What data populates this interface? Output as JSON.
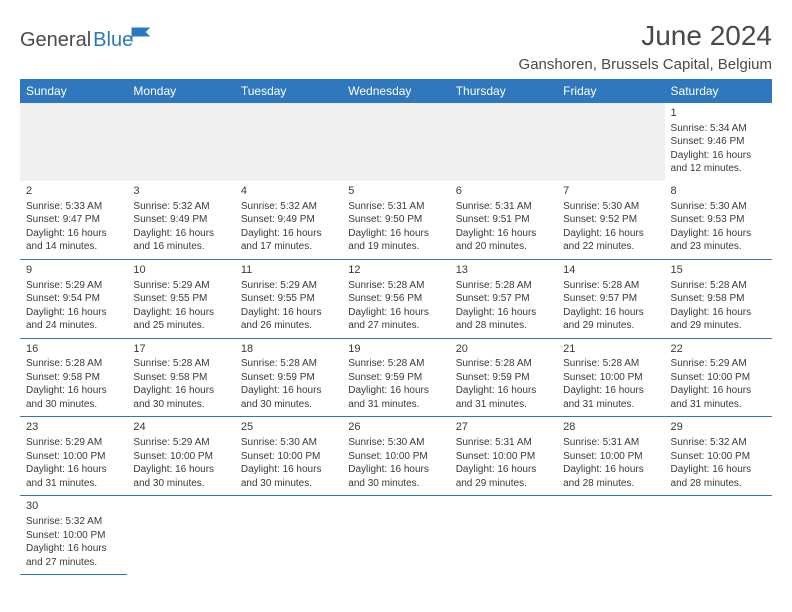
{
  "logo": {
    "part1": "General",
    "part2": "Blue"
  },
  "title": "June 2024",
  "location": "Ganshoren, Brussels Capital, Belgium",
  "colors": {
    "header_bg": "#2f78bd",
    "header_fg": "#ffffff",
    "text": "#3a3a3a",
    "divider": "#2f78bd",
    "blank_bg": "#efefef"
  },
  "weekdays": [
    "Sunday",
    "Monday",
    "Tuesday",
    "Wednesday",
    "Thursday",
    "Friday",
    "Saturday"
  ],
  "weeks": [
    [
      null,
      null,
      null,
      null,
      null,
      null,
      {
        "n": "1",
        "sr": "Sunrise: 5:34 AM",
        "ss": "Sunset: 9:46 PM",
        "d1": "Daylight: 16 hours",
        "d2": "and 12 minutes."
      }
    ],
    [
      {
        "n": "2",
        "sr": "Sunrise: 5:33 AM",
        "ss": "Sunset: 9:47 PM",
        "d1": "Daylight: 16 hours",
        "d2": "and 14 minutes."
      },
      {
        "n": "3",
        "sr": "Sunrise: 5:32 AM",
        "ss": "Sunset: 9:49 PM",
        "d1": "Daylight: 16 hours",
        "d2": "and 16 minutes."
      },
      {
        "n": "4",
        "sr": "Sunrise: 5:32 AM",
        "ss": "Sunset: 9:49 PM",
        "d1": "Daylight: 16 hours",
        "d2": "and 17 minutes."
      },
      {
        "n": "5",
        "sr": "Sunrise: 5:31 AM",
        "ss": "Sunset: 9:50 PM",
        "d1": "Daylight: 16 hours",
        "d2": "and 19 minutes."
      },
      {
        "n": "6",
        "sr": "Sunrise: 5:31 AM",
        "ss": "Sunset: 9:51 PM",
        "d1": "Daylight: 16 hours",
        "d2": "and 20 minutes."
      },
      {
        "n": "7",
        "sr": "Sunrise: 5:30 AM",
        "ss": "Sunset: 9:52 PM",
        "d1": "Daylight: 16 hours",
        "d2": "and 22 minutes."
      },
      {
        "n": "8",
        "sr": "Sunrise: 5:30 AM",
        "ss": "Sunset: 9:53 PM",
        "d1": "Daylight: 16 hours",
        "d2": "and 23 minutes."
      }
    ],
    [
      {
        "n": "9",
        "sr": "Sunrise: 5:29 AM",
        "ss": "Sunset: 9:54 PM",
        "d1": "Daylight: 16 hours",
        "d2": "and 24 minutes."
      },
      {
        "n": "10",
        "sr": "Sunrise: 5:29 AM",
        "ss": "Sunset: 9:55 PM",
        "d1": "Daylight: 16 hours",
        "d2": "and 25 minutes."
      },
      {
        "n": "11",
        "sr": "Sunrise: 5:29 AM",
        "ss": "Sunset: 9:55 PM",
        "d1": "Daylight: 16 hours",
        "d2": "and 26 minutes."
      },
      {
        "n": "12",
        "sr": "Sunrise: 5:28 AM",
        "ss": "Sunset: 9:56 PM",
        "d1": "Daylight: 16 hours",
        "d2": "and 27 minutes."
      },
      {
        "n": "13",
        "sr": "Sunrise: 5:28 AM",
        "ss": "Sunset: 9:57 PM",
        "d1": "Daylight: 16 hours",
        "d2": "and 28 minutes."
      },
      {
        "n": "14",
        "sr": "Sunrise: 5:28 AM",
        "ss": "Sunset: 9:57 PM",
        "d1": "Daylight: 16 hours",
        "d2": "and 29 minutes."
      },
      {
        "n": "15",
        "sr": "Sunrise: 5:28 AM",
        "ss": "Sunset: 9:58 PM",
        "d1": "Daylight: 16 hours",
        "d2": "and 29 minutes."
      }
    ],
    [
      {
        "n": "16",
        "sr": "Sunrise: 5:28 AM",
        "ss": "Sunset: 9:58 PM",
        "d1": "Daylight: 16 hours",
        "d2": "and 30 minutes."
      },
      {
        "n": "17",
        "sr": "Sunrise: 5:28 AM",
        "ss": "Sunset: 9:58 PM",
        "d1": "Daylight: 16 hours",
        "d2": "and 30 minutes."
      },
      {
        "n": "18",
        "sr": "Sunrise: 5:28 AM",
        "ss": "Sunset: 9:59 PM",
        "d1": "Daylight: 16 hours",
        "d2": "and 30 minutes."
      },
      {
        "n": "19",
        "sr": "Sunrise: 5:28 AM",
        "ss": "Sunset: 9:59 PM",
        "d1": "Daylight: 16 hours",
        "d2": "and 31 minutes."
      },
      {
        "n": "20",
        "sr": "Sunrise: 5:28 AM",
        "ss": "Sunset: 9:59 PM",
        "d1": "Daylight: 16 hours",
        "d2": "and 31 minutes."
      },
      {
        "n": "21",
        "sr": "Sunrise: 5:28 AM",
        "ss": "Sunset: 10:00 PM",
        "d1": "Daylight: 16 hours",
        "d2": "and 31 minutes."
      },
      {
        "n": "22",
        "sr": "Sunrise: 5:29 AM",
        "ss": "Sunset: 10:00 PM",
        "d1": "Daylight: 16 hours",
        "d2": "and 31 minutes."
      }
    ],
    [
      {
        "n": "23",
        "sr": "Sunrise: 5:29 AM",
        "ss": "Sunset: 10:00 PM",
        "d1": "Daylight: 16 hours",
        "d2": "and 31 minutes."
      },
      {
        "n": "24",
        "sr": "Sunrise: 5:29 AM",
        "ss": "Sunset: 10:00 PM",
        "d1": "Daylight: 16 hours",
        "d2": "and 30 minutes."
      },
      {
        "n": "25",
        "sr": "Sunrise: 5:30 AM",
        "ss": "Sunset: 10:00 PM",
        "d1": "Daylight: 16 hours",
        "d2": "and 30 minutes."
      },
      {
        "n": "26",
        "sr": "Sunrise: 5:30 AM",
        "ss": "Sunset: 10:00 PM",
        "d1": "Daylight: 16 hours",
        "d2": "and 30 minutes."
      },
      {
        "n": "27",
        "sr": "Sunrise: 5:31 AM",
        "ss": "Sunset: 10:00 PM",
        "d1": "Daylight: 16 hours",
        "d2": "and 29 minutes."
      },
      {
        "n": "28",
        "sr": "Sunrise: 5:31 AM",
        "ss": "Sunset: 10:00 PM",
        "d1": "Daylight: 16 hours",
        "d2": "and 28 minutes."
      },
      {
        "n": "29",
        "sr": "Sunrise: 5:32 AM",
        "ss": "Sunset: 10:00 PM",
        "d1": "Daylight: 16 hours",
        "d2": "and 28 minutes."
      }
    ],
    [
      {
        "n": "30",
        "sr": "Sunrise: 5:32 AM",
        "ss": "Sunset: 10:00 PM",
        "d1": "Daylight: 16 hours",
        "d2": "and 27 minutes."
      },
      null,
      null,
      null,
      null,
      null,
      null
    ]
  ]
}
